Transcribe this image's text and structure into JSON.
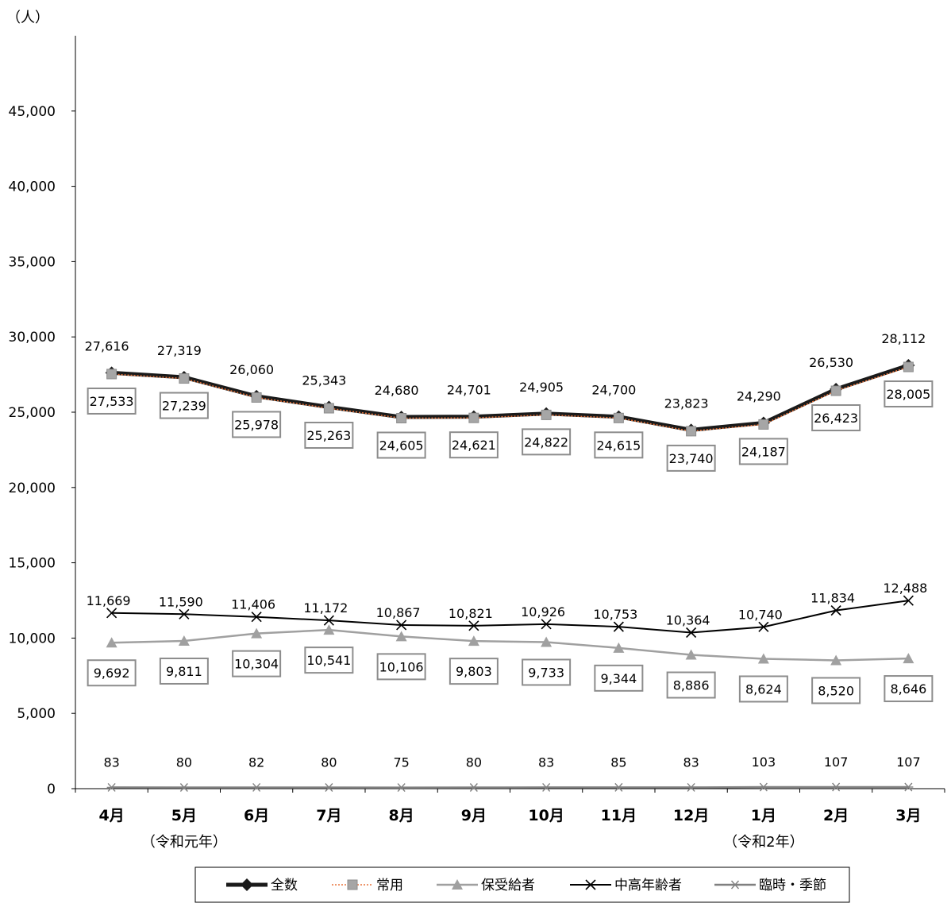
{
  "chart_data": {
    "type": "line",
    "unit_label": "（人）",
    "categories": [
      "4月",
      "5月",
      "6月",
      "7月",
      "8月",
      "9月",
      "10月",
      "11月",
      "12月",
      "1月",
      "2月",
      "3月"
    ],
    "era_labels": [
      {
        "category_index": 1,
        "text": "（令和元年）"
      },
      {
        "category_index": 9,
        "text": "（令和2年）"
      }
    ],
    "ylim": [
      0,
      50000
    ],
    "yticks": [
      0,
      5000,
      10000,
      15000,
      20000,
      25000,
      30000,
      35000,
      40000,
      45000
    ],
    "ytick_labels": [
      "0",
      "5,000",
      "10,000",
      "15,000",
      "20,000",
      "25,000",
      "30,000",
      "35,000",
      "40,000",
      "45,000"
    ],
    "grid": false,
    "legend_position": "bottom",
    "series": [
      {
        "name": "全数",
        "values": [
          27616,
          27319,
          26060,
          25343,
          24680,
          24701,
          24905,
          24700,
          23823,
          24290,
          26530,
          28112
        ],
        "labels": [
          "27,616",
          "27,319",
          "26,060",
          "25,343",
          "24,680",
          "24,701",
          "24,905",
          "24,700",
          "23,823",
          "24,290",
          "26,530",
          "28,112"
        ],
        "color": "#1a1a1a",
        "marker": "diamond",
        "label_style": "plain"
      },
      {
        "name": "常用",
        "values": [
          27533,
          27239,
          25978,
          25263,
          24605,
          24621,
          24822,
          24615,
          23740,
          24187,
          26423,
          28005
        ],
        "labels": [
          "27,533",
          "27,239",
          "25,978",
          "25,263",
          "24,605",
          "24,621",
          "24,822",
          "24,615",
          "23,740",
          "24,187",
          "26,423",
          "28,005"
        ],
        "color": "#e8743b",
        "marker": "square",
        "label_style": "boxed"
      },
      {
        "name": "保受給者",
        "values": [
          9692,
          9811,
          10304,
          10541,
          10106,
          9803,
          9733,
          9344,
          8886,
          8624,
          8520,
          8646
        ],
        "labels": [
          "9,692",
          "9,811",
          "10,304",
          "10,541",
          "10,106",
          "9,803",
          "9,733",
          "9,344",
          "8,886",
          "8,624",
          "8,520",
          "8,646"
        ],
        "color": "#a0a0a0",
        "marker": "triangle",
        "label_style": "boxed"
      },
      {
        "name": "中高年齢者",
        "values": [
          11669,
          11590,
          11406,
          11172,
          10867,
          10821,
          10926,
          10753,
          10364,
          10740,
          11834,
          12488
        ],
        "labels": [
          "11,669",
          "11,590",
          "11,406",
          "11,172",
          "10,867",
          "10,821",
          "10,926",
          "10,753",
          "10,364",
          "10,740",
          "11,834",
          "12,488"
        ],
        "color": "#000000",
        "marker": "x",
        "label_style": "plain"
      },
      {
        "name": "臨時・季節",
        "values": [
          83,
          80,
          82,
          80,
          75,
          80,
          83,
          85,
          83,
          103,
          107,
          107
        ],
        "labels": [
          "83",
          "80",
          "82",
          "80",
          "75",
          "80",
          "83",
          "85",
          "83",
          "103",
          "107",
          "107"
        ],
        "color": "#808080",
        "marker": "asterisk",
        "label_style": "plain"
      }
    ]
  }
}
